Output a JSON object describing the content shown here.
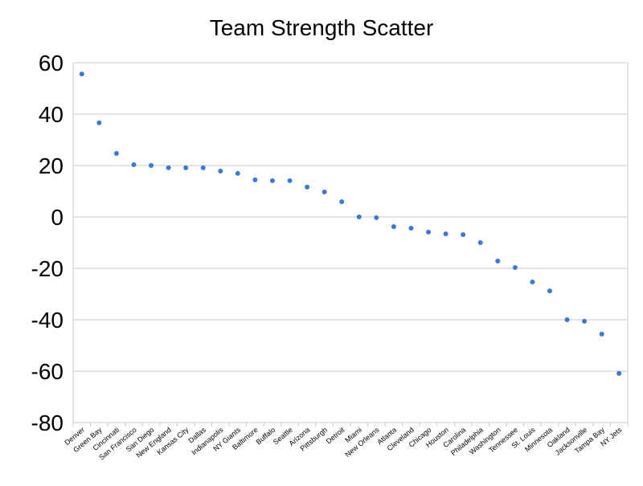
{
  "chart_data": {
    "type": "scatter",
    "title": "Team Strength Scatter",
    "xlabel": "",
    "ylabel": "",
    "ylim": [
      -80,
      60
    ],
    "yticks": [
      60,
      40,
      20,
      0,
      -20,
      -40,
      -60,
      -80
    ],
    "grid": true,
    "legend": "none",
    "marker_color": "#3c78d8",
    "categories": [
      "Denver",
      "Green Bay",
      "Cincinnati",
      "San Francisco",
      "San Diego",
      "New England",
      "Kansas City",
      "Dallas",
      "Indianapolis",
      "NY Giants",
      "Baltimore",
      "Buffalo",
      "Seattle",
      "Arizona",
      "Pittsburgh",
      "Detroit",
      "Miami",
      "New Orleans",
      "Atlanta",
      "Cleveland",
      "Chicago",
      "Houston",
      "Carolina",
      "Philadelphia",
      "Washington",
      "Tennessee",
      "St. Louis",
      "Minnesota",
      "Oakland",
      "Jacksonville",
      "Tampa Bay",
      "NY Jets"
    ],
    "values": [
      55.6,
      36.6,
      24.7,
      20.3,
      20.0,
      19.1,
      19.1,
      19.1,
      17.8,
      16.9,
      14.4,
      14.1,
      14.1,
      11.6,
      9.7,
      5.9,
      0.0,
      -0.3,
      -3.8,
      -4.4,
      -5.9,
      -6.6,
      -6.9,
      -10.0,
      -17.2,
      -19.7,
      -25.3,
      -28.8,
      -40.0,
      -40.6,
      -45.6,
      -60.9
    ]
  }
}
